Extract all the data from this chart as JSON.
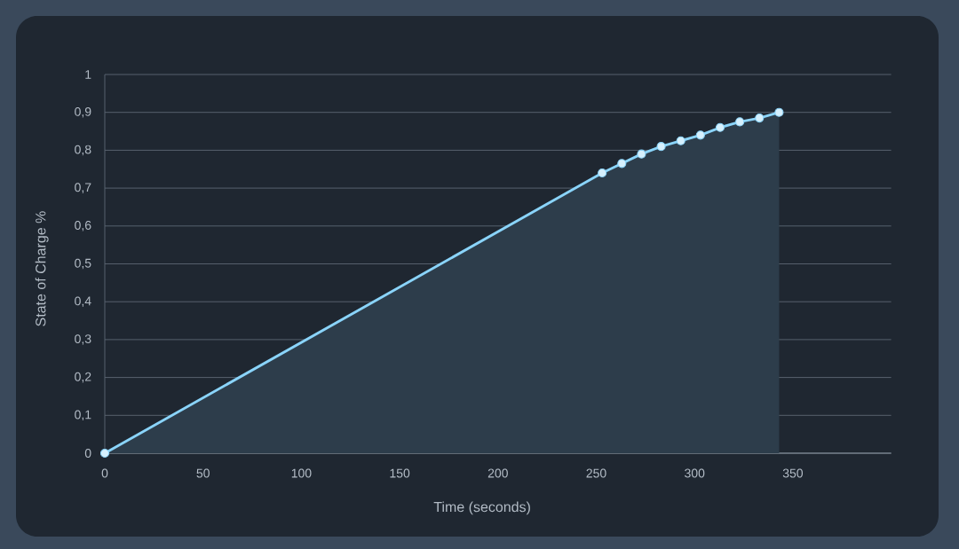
{
  "chart_data": {
    "type": "area",
    "xlabel": "Time (seconds)",
    "ylabel": "State of Charge %",
    "x": [
      0,
      253,
      263,
      273,
      283,
      293,
      303,
      313,
      323,
      333,
      343
    ],
    "values": [
      0,
      0.74,
      0.765,
      0.79,
      0.81,
      0.825,
      0.84,
      0.86,
      0.875,
      0.885,
      0.9
    ],
    "color": "#8ad4fa",
    "xlim": [
      0,
      400
    ],
    "ylim": [
      0,
      1
    ],
    "xticks": [
      0,
      50,
      100,
      150,
      200,
      250,
      300,
      350
    ],
    "yticks": [
      0,
      {
        "value": 0.1,
        "label": "0,1"
      },
      {
        "value": 0.2,
        "label": "0,2"
      },
      {
        "value": 0.3,
        "label": "0,3"
      },
      {
        "value": 0.4,
        "label": "0,4"
      },
      {
        "value": 0.5,
        "label": "0,5"
      },
      {
        "value": 0.6,
        "label": "0,6"
      },
      {
        "value": 0.7,
        "label": "0,7"
      },
      {
        "value": 0.8,
        "label": "0,8"
      },
      {
        "value": 0.9,
        "label": "0,9"
      },
      1
    ],
    "grid": "y",
    "marker": "circle",
    "line_style": "solid"
  }
}
